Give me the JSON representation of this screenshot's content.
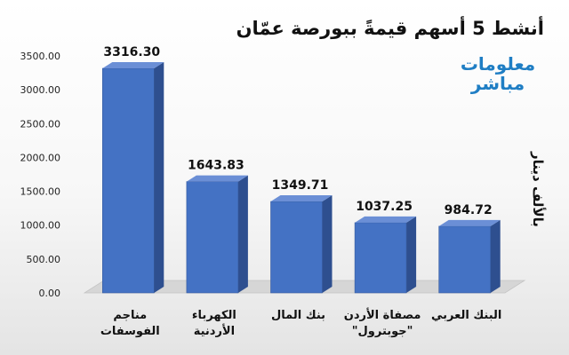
{
  "header": {
    "title": "أنشط 5 أسهم قيمةً ببورصة عمّان"
  },
  "logo": {
    "line1": "معلومات",
    "line2": "مباشر"
  },
  "unit_label": "بالألف دينار",
  "colors": {
    "bar_front": "#4472c4",
    "bar_side": "#2e4f8f",
    "bar_top": "#6b8fd6",
    "floor": "#d6d6d6"
  },
  "chart_data": {
    "type": "bar",
    "title": "أنشط 5 أسهم قيمةً ببورصة عمّان",
    "ylabel": "بالألف دينار",
    "xlabel": "",
    "ylim": [
      0,
      3500
    ],
    "yticks": [
      0,
      500,
      1000,
      1500,
      2000,
      2500,
      3000,
      3500
    ],
    "ytick_labels": [
      "0.00",
      "500.00",
      "1000.00",
      "1500.00",
      "2000.00",
      "2500.00",
      "3000.00",
      "3500.00"
    ],
    "grid": true,
    "categories": [
      [
        "مناجم",
        "الفوسفات"
      ],
      [
        "الكهرباء",
        "الأردنية"
      ],
      [
        "بنك المال"
      ],
      [
        "مصفاة الأردن",
        "\"جوبترول\""
      ],
      [
        "البنك العربي"
      ]
    ],
    "values": [
      3316.3,
      1643.83,
      1349.71,
      1037.25,
      984.72
    ],
    "value_labels": [
      "3316.30",
      "1643.83",
      "1349.71",
      "1037.25",
      "984.72"
    ]
  }
}
